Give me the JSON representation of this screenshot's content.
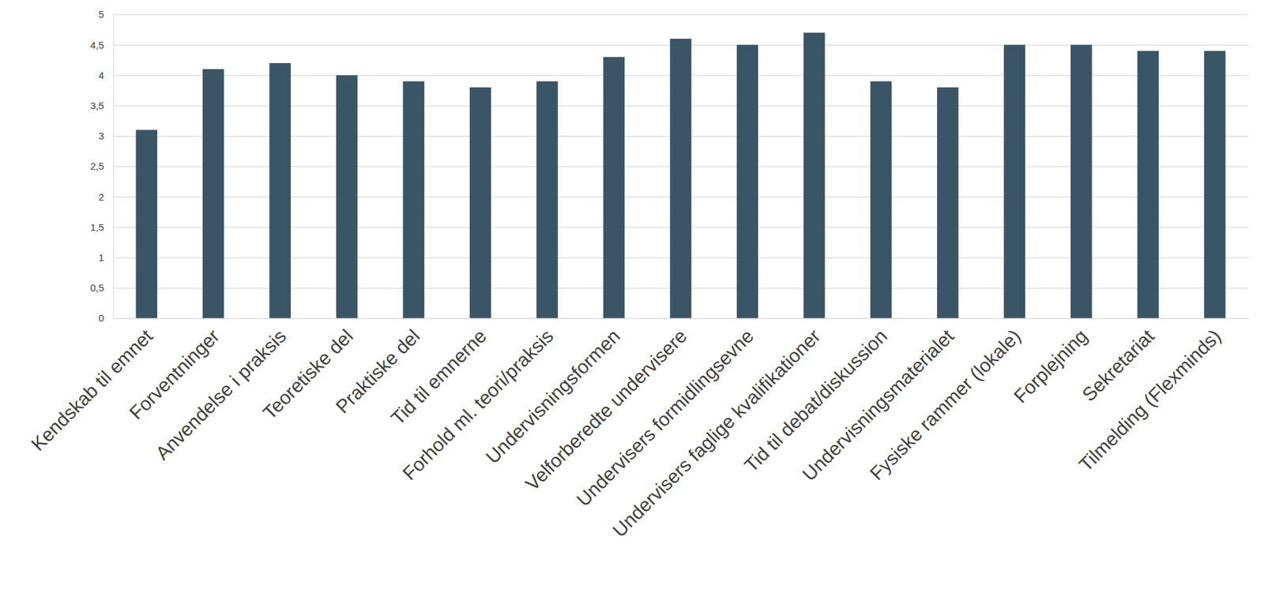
{
  "chart_data": {
    "type": "bar",
    "categories": [
      "Kendskab til emnet",
      "Forventninger",
      "Anvendelse i praksis",
      "Teoretiske del",
      "Praktiske del",
      "Tid til emnerne",
      "Forhold ml. teori/praksis",
      "Undervisningsformen",
      "Velforberedte undervisere",
      "Undervisers formidlingsevne",
      "Undervisers faglige kvalifikationer",
      "Tid til debat/diskussion",
      "Undervisningsmaterialet",
      "Fysiske rammer (lokale)",
      "Forplejning",
      "Sekretariat",
      "Tilmelding (Flexminds)"
    ],
    "values": [
      3.1,
      4.1,
      4.2,
      4.0,
      3.9,
      3.8,
      3.9,
      4.3,
      4.6,
      4.5,
      4.7,
      3.9,
      3.8,
      4.5,
      4.5,
      4.4,
      4.4
    ],
    "color": "#3a5566",
    "ylim": [
      0,
      5
    ],
    "yticks": [
      0,
      {
        "value": 0.5,
        "label": "0,5"
      },
      1,
      {
        "value": 1.5,
        "label": "1,5"
      },
      2,
      {
        "value": 2.5,
        "label": "2,5"
      },
      3,
      {
        "value": 3.5,
        "label": "3,5"
      },
      4,
      {
        "value": 4.5,
        "label": "4,5"
      },
      5
    ],
    "grid": true
  }
}
